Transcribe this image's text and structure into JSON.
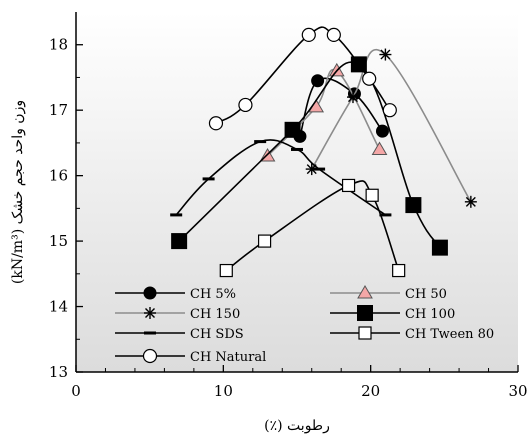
{
  "chart_data": {
    "type": "line",
    "xlabel": "رطوبت (٪)",
    "ylabel": "(kN/m³) وزن واحد حجم خشک",
    "xlim": [
      0,
      30
    ],
    "ylim": [
      13,
      18.5
    ],
    "xticks": [
      "0",
      "10",
      "20",
      "30"
    ],
    "yticks": [
      "13",
      "14",
      "15",
      "16",
      "17",
      "18"
    ],
    "grid": false,
    "legend_position": "bottom",
    "series": [
      {
        "name": "CH 5%",
        "marker": "circle-filled",
        "color": "#000000",
        "x": [
          15.2,
          16.4,
          18.9,
          20.8
        ],
        "y": [
          16.6,
          17.45,
          17.25,
          16.68
        ]
      },
      {
        "name": "CH 50",
        "marker": "triangle",
        "color": "#8c8c8c",
        "x": [
          13.0,
          16.3,
          17.7,
          20.6
        ],
        "y": [
          16.3,
          17.05,
          17.6,
          16.4
        ]
      },
      {
        "name": "CH 150",
        "marker": "star",
        "color": "#8c8c8c",
        "x": [
          16.0,
          18.8,
          21.0,
          26.8
        ],
        "y": [
          16.1,
          17.2,
          17.85,
          15.6
        ]
      },
      {
        "name": "CH 100",
        "marker": "square-filled",
        "color": "#000000",
        "x": [
          7.0,
          14.7,
          19.2,
          22.9,
          24.7
        ],
        "y": [
          15.0,
          16.7,
          17.7,
          15.55,
          14.9
        ]
      },
      {
        "name": "CH SDS",
        "marker": "dash",
        "color": "#000000",
        "x": [
          6.8,
          9.0,
          12.5,
          15.0,
          16.5,
          21.0
        ],
        "y": [
          15.4,
          15.95,
          16.52,
          16.4,
          16.1,
          15.4
        ]
      },
      {
        "name": "CH Tween 80",
        "marker": "square-open",
        "color": "#000000",
        "x": [
          10.2,
          12.8,
          18.5,
          20.1,
          21.9
        ],
        "y": [
          14.55,
          15.0,
          15.85,
          15.7,
          14.55
        ]
      },
      {
        "name": "CH Natural",
        "marker": "circle-open",
        "color": "#000000",
        "x": [
          9.5,
          11.5,
          15.8,
          17.5,
          19.9,
          21.3
        ],
        "y": [
          16.8,
          17.08,
          18.15,
          18.15,
          17.48,
          17.0
        ]
      }
    ]
  }
}
